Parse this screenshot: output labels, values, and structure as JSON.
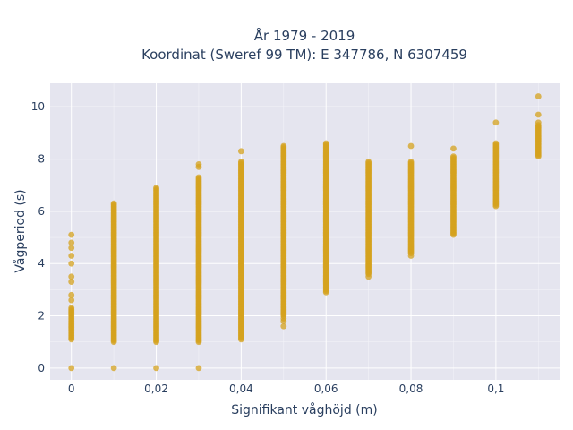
{
  "chart_data": {
    "type": "scatter",
    "title_line1": "År 1979 - 2019",
    "title_line2": "Koordinat (Sweref 99 TM): E 347786, N 6307459",
    "xlabel": "Signifikant våghöjd (m)",
    "ylabel": "Vågperiod (s)",
    "xlim": [
      -0.005,
      0.115
    ],
    "ylim": [
      -0.45,
      10.9
    ],
    "grid": true,
    "marker_color": "#d4a21e",
    "plot_background": "#e5e5ef",
    "x_ticks": [
      {
        "value": 0,
        "label": "0"
      },
      {
        "value": 0.02,
        "label": "0,02"
      },
      {
        "value": 0.04,
        "label": "0,04"
      },
      {
        "value": 0.06,
        "label": "0,06"
      },
      {
        "value": 0.08,
        "label": "0,08"
      },
      {
        "value": 0.1,
        "label": "0,1"
      }
    ],
    "y_ticks": [
      {
        "value": 0,
        "label": "0"
      },
      {
        "value": 2,
        "label": "2"
      },
      {
        "value": 4,
        "label": "4"
      },
      {
        "value": 6,
        "label": "6"
      },
      {
        "value": 8,
        "label": "8"
      },
      {
        "value": 10,
        "label": "10"
      }
    ],
    "series": [
      {
        "x": 0,
        "y_min": 1.1,
        "y_max": 5.1,
        "dense_min": 1.1,
        "dense_max": 2.3,
        "extra": [
          0.0,
          2.6,
          2.8,
          3.3,
          3.5,
          4.0,
          4.3,
          4.6,
          4.8,
          5.1
        ]
      },
      {
        "x": 0.01,
        "y_min": 1.0,
        "y_max": 6.5,
        "dense_min": 1.0,
        "dense_max": 6.3,
        "extra": [
          0.0
        ]
      },
      {
        "x": 0.02,
        "y_min": 1.0,
        "y_max": 7.0,
        "dense_min": 1.0,
        "dense_max": 6.9,
        "extra": [
          0.0
        ]
      },
      {
        "x": 0.03,
        "y_min": 1.0,
        "y_max": 7.8,
        "dense_min": 1.0,
        "dense_max": 7.3,
        "extra": [
          0.0,
          7.7,
          7.8
        ]
      },
      {
        "x": 0.04,
        "y_min": 1.1,
        "y_max": 8.3,
        "dense_min": 1.1,
        "dense_max": 7.9,
        "extra": [
          8.3
        ]
      },
      {
        "x": 0.05,
        "y_min": 1.6,
        "y_max": 8.5,
        "dense_min": 2.0,
        "dense_max": 8.5,
        "extra": [
          1.6,
          1.8,
          1.9
        ]
      },
      {
        "x": 0.06,
        "y_min": 2.9,
        "y_max": 8.6,
        "dense_min": 2.9,
        "dense_max": 8.6,
        "extra": []
      },
      {
        "x": 0.07,
        "y_min": 3.5,
        "y_max": 7.9,
        "dense_min": 3.6,
        "dense_max": 7.9,
        "extra": [
          3.5
        ]
      },
      {
        "x": 0.08,
        "y_min": 4.3,
        "y_max": 8.5,
        "dense_min": 4.4,
        "dense_max": 7.9,
        "extra": [
          4.3,
          8.5
        ]
      },
      {
        "x": 0.09,
        "y_min": 5.1,
        "y_max": 8.4,
        "dense_min": 5.1,
        "dense_max": 8.1,
        "extra": [
          8.4
        ]
      },
      {
        "x": 0.1,
        "y_min": 6.2,
        "y_max": 9.4,
        "dense_min": 6.2,
        "dense_max": 8.6,
        "extra": [
          9.4
        ]
      },
      {
        "x": 0.11,
        "y_min": 8.1,
        "y_max": 10.4,
        "dense_min": 8.1,
        "dense_max": 9.3,
        "extra": [
          9.4,
          9.7,
          10.4
        ]
      }
    ]
  }
}
